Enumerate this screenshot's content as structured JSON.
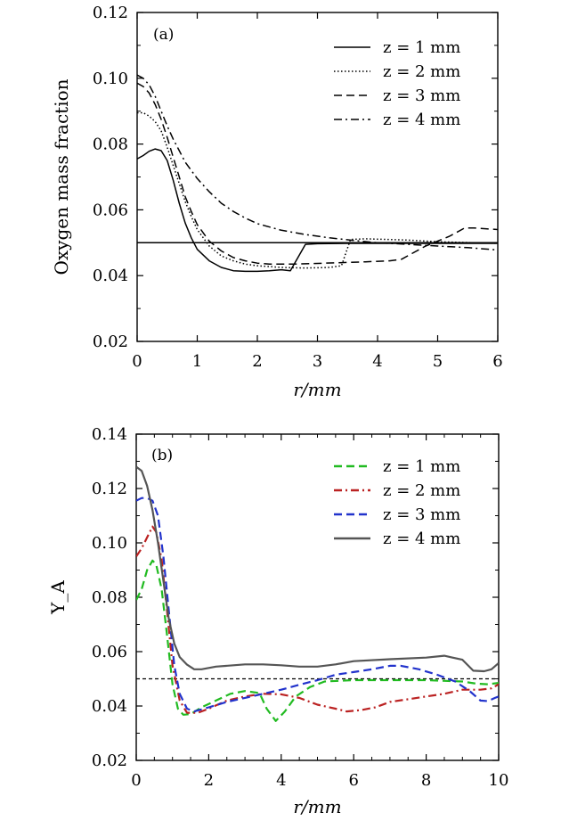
{
  "chart_data": [
    {
      "type": "line",
      "panel_label": "(a)",
      "xlabel": "r/mm",
      "ylabel": "Oxygen mass fraction",
      "xlim": [
        0,
        6
      ],
      "ylim": [
        0.02,
        0.12
      ],
      "xticks": [
        "0",
        "1",
        "2",
        "3",
        "4",
        "5",
        "6"
      ],
      "yticks": [
        "0.02",
        "0.04",
        "0.06",
        "0.08",
        "0.10",
        "0.12"
      ],
      "legend_position": "top-right",
      "reference_line": {
        "y": 0.05,
        "style": "solid"
      },
      "series": [
        {
          "name": "z = 1 mm",
          "style": "solid",
          "color": "#000000",
          "points": [
            [
              0,
              0.0755
            ],
            [
              0.1,
              0.0765
            ],
            [
              0.2,
              0.0778
            ],
            [
              0.3,
              0.0785
            ],
            [
              0.4,
              0.078
            ],
            [
              0.5,
              0.075
            ],
            [
              0.6,
              0.069
            ],
            [
              0.7,
              0.062
            ],
            [
              0.8,
              0.056
            ],
            [
              0.9,
              0.0515
            ],
            [
              1.0,
              0.048
            ],
            [
              1.2,
              0.0445
            ],
            [
              1.4,
              0.0425
            ],
            [
              1.6,
              0.0415
            ],
            [
              1.8,
              0.0413
            ],
            [
              2.0,
              0.0413
            ],
            [
              2.2,
              0.0415
            ],
            [
              2.4,
              0.0418
            ],
            [
              2.55,
              0.0415
            ],
            [
              2.8,
              0.0495
            ],
            [
              3.0,
              0.0497
            ],
            [
              3.5,
              0.0498
            ],
            [
              4.0,
              0.0498
            ],
            [
              5.0,
              0.0498
            ],
            [
              6.0,
              0.0498
            ]
          ]
        },
        {
          "name": "z = 2 mm",
          "style": "dotted",
          "color": "#000000",
          "points": [
            [
              0,
              0.0895
            ],
            [
              0.1,
              0.0895
            ],
            [
              0.2,
              0.0885
            ],
            [
              0.3,
              0.0868
            ],
            [
              0.4,
              0.084
            ],
            [
              0.5,
              0.079
            ],
            [
              0.6,
              0.0735
            ],
            [
              0.7,
              0.068
            ],
            [
              0.8,
              0.0625
            ],
            [
              0.9,
              0.058
            ],
            [
              1.0,
              0.054
            ],
            [
              1.2,
              0.049
            ],
            [
              1.4,
              0.046
            ],
            [
              1.6,
              0.0445
            ],
            [
              1.8,
              0.0435
            ],
            [
              2.0,
              0.043
            ],
            [
              2.4,
              0.0425
            ],
            [
              2.8,
              0.0423
            ],
            [
              3.2,
              0.0425
            ],
            [
              3.4,
              0.043
            ],
            [
              3.55,
              0.051
            ],
            [
              3.8,
              0.0512
            ],
            [
              4.5,
              0.0508
            ],
            [
              5.0,
              0.0503
            ],
            [
              6.0,
              0.0498
            ]
          ]
        },
        {
          "name": "z = 3 mm",
          "style": "dashed",
          "color": "#000000",
          "points": [
            [
              0,
              0.0985
            ],
            [
              0.1,
              0.0975
            ],
            [
              0.2,
              0.0955
            ],
            [
              0.3,
              0.092
            ],
            [
              0.4,
              0.0875
            ],
            [
              0.5,
              0.082
            ],
            [
              0.6,
              0.076
            ],
            [
              0.7,
              0.07
            ],
            [
              0.8,
              0.064
            ],
            [
              0.9,
              0.0595
            ],
            [
              1.0,
              0.0555
            ],
            [
              1.2,
              0.0505
            ],
            [
              1.4,
              0.0475
            ],
            [
              1.6,
              0.0455
            ],
            [
              1.8,
              0.0445
            ],
            [
              2.0,
              0.0438
            ],
            [
              2.2,
              0.0435
            ],
            [
              2.6,
              0.0435
            ],
            [
              3.0,
              0.0437
            ],
            [
              3.5,
              0.044
            ],
            [
              3.8,
              0.0442
            ],
            [
              4.2,
              0.0445
            ],
            [
              4.4,
              0.045
            ],
            [
              4.6,
              0.047
            ],
            [
              4.8,
              0.049
            ],
            [
              5.0,
              0.0505
            ],
            [
              5.2,
              0.052
            ],
            [
              5.45,
              0.0545
            ],
            [
              5.6,
              0.0545
            ],
            [
              6.0,
              0.054
            ]
          ]
        },
        {
          "name": "z = 4 mm",
          "style": "dashdot",
          "color": "#000000",
          "points": [
            [
              0,
              0.101
            ],
            [
              0.1,
              0.1
            ],
            [
              0.2,
              0.098
            ],
            [
              0.3,
              0.0945
            ],
            [
              0.4,
              0.09
            ],
            [
              0.5,
              0.0855
            ],
            [
              0.6,
              0.0815
            ],
            [
              0.7,
              0.078
            ],
            [
              0.8,
              0.0745
            ],
            [
              1.0,
              0.0695
            ],
            [
              1.2,
              0.0655
            ],
            [
              1.4,
              0.062
            ],
            [
              1.6,
              0.0595
            ],
            [
              1.8,
              0.0575
            ],
            [
              2.0,
              0.0558
            ],
            [
              2.4,
              0.0538
            ],
            [
              2.8,
              0.0525
            ],
            [
              3.2,
              0.0515
            ],
            [
              3.6,
              0.0507
            ],
            [
              4.0,
              0.05
            ],
            [
              4.5,
              0.0495
            ],
            [
              5.0,
              0.049
            ],
            [
              5.5,
              0.0485
            ],
            [
              6.0,
              0.0478
            ]
          ]
        }
      ]
    },
    {
      "type": "line",
      "panel_label": "(b)",
      "xlabel": "r/mm",
      "ylabel": "Y_A",
      "xlim": [
        0,
        10
      ],
      "ylim": [
        0.02,
        0.14
      ],
      "xticks": [
        "0",
        "2",
        "4",
        "6",
        "8",
        "10"
      ],
      "yticks": [
        "0.02",
        "0.04",
        "0.06",
        "0.08",
        "0.10",
        "0.12",
        "0.14"
      ],
      "legend_position": "top-right",
      "reference_line": {
        "y": 0.05,
        "style": "dashed"
      },
      "series": [
        {
          "name": "z = 1 mm",
          "style": "dashed",
          "color": "#22bb22",
          "points": [
            [
              0,
              0.079
            ],
            [
              0.15,
              0.083
            ],
            [
              0.3,
              0.09
            ],
            [
              0.45,
              0.0935
            ],
            [
              0.55,
              0.092
            ],
            [
              0.7,
              0.083
            ],
            [
              0.85,
              0.066
            ],
            [
              1.0,
              0.048
            ],
            [
              1.15,
              0.039
            ],
            [
              1.3,
              0.0368
            ],
            [
              1.5,
              0.037
            ],
            [
              1.8,
              0.0395
            ],
            [
              2.2,
              0.042
            ],
            [
              2.6,
              0.0445
            ],
            [
              3.0,
              0.0455
            ],
            [
              3.4,
              0.0448
            ],
            [
              3.6,
              0.039
            ],
            [
              3.85,
              0.0345
            ],
            [
              4.1,
              0.038
            ],
            [
              4.4,
              0.0435
            ],
            [
              4.8,
              0.047
            ],
            [
              5.2,
              0.049
            ],
            [
              6.0,
              0.0495
            ],
            [
              7.0,
              0.0495
            ],
            [
              8.0,
              0.0495
            ],
            [
              9.0,
              0.049
            ],
            [
              9.4,
              0.0482
            ],
            [
              9.7,
              0.048
            ],
            [
              10.0,
              0.0485
            ]
          ]
        },
        {
          "name": "z = 2 mm",
          "style": "dashdot",
          "color": "#bb2222",
          "points": [
            [
              0,
              0.095
            ],
            [
              0.15,
              0.098
            ],
            [
              0.3,
              0.102
            ],
            [
              0.45,
              0.106
            ],
            [
              0.55,
              0.104
            ],
            [
              0.7,
              0.094
            ],
            [
              0.85,
              0.075
            ],
            [
              1.0,
              0.055
            ],
            [
              1.2,
              0.042
            ],
            [
              1.4,
              0.0375
            ],
            [
              1.7,
              0.0375
            ],
            [
              2.0,
              0.039
            ],
            [
              2.5,
              0.042
            ],
            [
              3.0,
              0.0435
            ],
            [
              3.5,
              0.0445
            ],
            [
              4.0,
              0.0443
            ],
            [
              4.5,
              0.043
            ],
            [
              5.0,
              0.0405
            ],
            [
              5.5,
              0.039
            ],
            [
              5.8,
              0.038
            ],
            [
              6.2,
              0.0385
            ],
            [
              6.6,
              0.0395
            ],
            [
              7.0,
              0.0415
            ],
            [
              7.5,
              0.0425
            ],
            [
              8.0,
              0.0435
            ],
            [
              8.5,
              0.0445
            ],
            [
              9.0,
              0.046
            ],
            [
              9.5,
              0.046
            ],
            [
              9.8,
              0.0465
            ],
            [
              10.0,
              0.048
            ]
          ]
        },
        {
          "name": "z = 3 mm",
          "style": "dashed",
          "color": "#2233cc",
          "points": [
            [
              0,
              0.1155
            ],
            [
              0.15,
              0.1165
            ],
            [
              0.3,
              0.1165
            ],
            [
              0.45,
              0.1155
            ],
            [
              0.6,
              0.11
            ],
            [
              0.75,
              0.095
            ],
            [
              0.9,
              0.075
            ],
            [
              1.05,
              0.055
            ],
            [
              1.2,
              0.0445
            ],
            [
              1.4,
              0.039
            ],
            [
              1.6,
              0.038
            ],
            [
              2.0,
              0.0395
            ],
            [
              2.5,
              0.0415
            ],
            [
              3.0,
              0.043
            ],
            [
              3.5,
              0.0445
            ],
            [
              4.0,
              0.046
            ],
            [
              4.5,
              0.0478
            ],
            [
              5.0,
              0.0495
            ],
            [
              5.5,
              0.0515
            ],
            [
              6.0,
              0.0525
            ],
            [
              6.5,
              0.0535
            ],
            [
              7.0,
              0.0548
            ],
            [
              7.3,
              0.0548
            ],
            [
              7.8,
              0.0535
            ],
            [
              8.3,
              0.0515
            ],
            [
              8.8,
              0.049
            ],
            [
              9.2,
              0.0455
            ],
            [
              9.5,
              0.042
            ],
            [
              9.7,
              0.0418
            ],
            [
              9.9,
              0.043
            ],
            [
              10.0,
              0.0435
            ]
          ]
        },
        {
          "name": "z = 4 mm",
          "style": "solid",
          "color": "#555555",
          "points": [
            [
              0,
              0.128
            ],
            [
              0.15,
              0.1265
            ],
            [
              0.3,
              0.121
            ],
            [
              0.45,
              0.112
            ],
            [
              0.6,
              0.1
            ],
            [
              0.75,
              0.086
            ],
            [
              0.9,
              0.072
            ],
            [
              1.05,
              0.063
            ],
            [
              1.2,
              0.058
            ],
            [
              1.4,
              0.0552
            ],
            [
              1.6,
              0.0535
            ],
            [
              1.8,
              0.0535
            ],
            [
              2.2,
              0.0545
            ],
            [
              3.0,
              0.0553
            ],
            [
              3.5,
              0.0553
            ],
            [
              4.0,
              0.055
            ],
            [
              4.5,
              0.0545
            ],
            [
              5.0,
              0.0545
            ],
            [
              5.5,
              0.0553
            ],
            [
              6.0,
              0.0565
            ],
            [
              7.0,
              0.0572
            ],
            [
              8.0,
              0.0578
            ],
            [
              8.5,
              0.0585
            ],
            [
              9.0,
              0.057
            ],
            [
              9.3,
              0.053
            ],
            [
              9.6,
              0.0528
            ],
            [
              9.8,
              0.0535
            ],
            [
              10.0,
              0.0558
            ]
          ]
        }
      ]
    }
  ]
}
